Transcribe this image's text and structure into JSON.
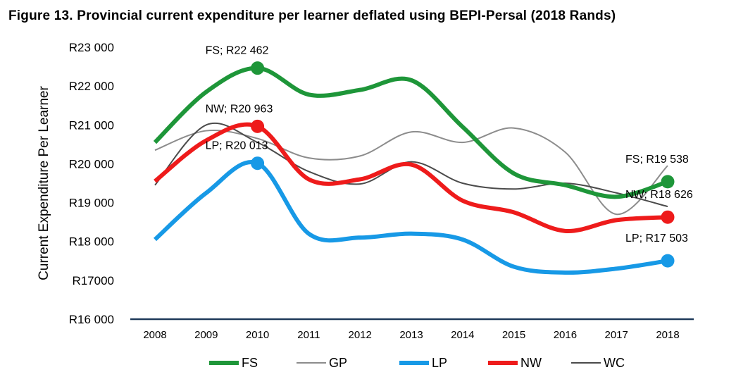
{
  "chart_data": {
    "type": "line",
    "title": "Figure 13. Provincial current expenditure per learner deflated using BEPI-Persal (2018 Rands)",
    "ylabel": "Current Expenditure Per Learner",
    "xlabel": "",
    "ylim": [
      16000,
      23000
    ],
    "y_ticks": [
      {
        "value": 23000,
        "label": "R23 000"
      },
      {
        "value": 22000,
        "label": "R22 000"
      },
      {
        "value": 21000,
        "label": "R21 000"
      },
      {
        "value": 20000,
        "label": "R20 000"
      },
      {
        "value": 19000,
        "label": "R19 000"
      },
      {
        "value": 18000,
        "label": "R18 000"
      },
      {
        "value": 17000,
        "label": "R17000"
      },
      {
        "value": 16000,
        "label": "R16 000"
      }
    ],
    "categories": [
      "2008",
      "2009",
      "2010",
      "2011",
      "2012",
      "2013",
      "2014",
      "2015",
      "2016",
      "2017",
      "2018"
    ],
    "legend_position": "bottom",
    "grid": false,
    "series": [
      {
        "name": "FS",
        "color": "#1e9639",
        "width": 6,
        "values": [
          20550,
          21850,
          22462,
          21780,
          21900,
          22150,
          20950,
          19750,
          19450,
          19150,
          19538
        ]
      },
      {
        "name": "GP",
        "color": "#8c8c8c",
        "width": 2,
        "values": [
          20350,
          20850,
          20650,
          20150,
          20200,
          20820,
          20550,
          20920,
          20300,
          18700,
          19950
        ]
      },
      {
        "name": "LP",
        "color": "#1799e6",
        "width": 6,
        "values": [
          18050,
          19250,
          20013,
          18200,
          18100,
          18200,
          18050,
          17350,
          17200,
          17300,
          17503
        ]
      },
      {
        "name": "NW",
        "color": "#ee1b1b",
        "width": 6,
        "values": [
          19550,
          20600,
          20963,
          19600,
          19600,
          19980,
          19050,
          18750,
          18270,
          18550,
          18626
        ]
      },
      {
        "name": "WC",
        "color": "#4b4b4b",
        "width": 2,
        "values": [
          19450,
          21000,
          20550,
          19800,
          19480,
          20050,
          19500,
          19350,
          19500,
          19250,
          18900
        ]
      }
    ],
    "markers": [
      {
        "series": "FS",
        "category": "2010"
      },
      {
        "series": "NW",
        "category": "2010"
      },
      {
        "series": "LP",
        "category": "2010"
      },
      {
        "series": "FS",
        "category": "2018"
      },
      {
        "series": "NW",
        "category": "2018"
      },
      {
        "series": "LP",
        "category": "2018"
      }
    ],
    "annotations": [
      {
        "text": "FS; R22 462",
        "category": "2010",
        "value": 22462,
        "placement": "above-left"
      },
      {
        "text": "NW; R20 963",
        "category": "2010",
        "value": 20963,
        "placement": "above-left"
      },
      {
        "text": "LP; R20 013",
        "category": "2010",
        "value": 20013,
        "placement": "above-left"
      },
      {
        "text": "FS; R19 538",
        "category": "2018",
        "value": 19538,
        "placement": "above"
      },
      {
        "text": "NW; R18 626",
        "category": "2018",
        "value": 18626,
        "placement": "above"
      },
      {
        "text": "LP; R17 503",
        "category": "2018",
        "value": 17503,
        "placement": "above"
      }
    ]
  }
}
